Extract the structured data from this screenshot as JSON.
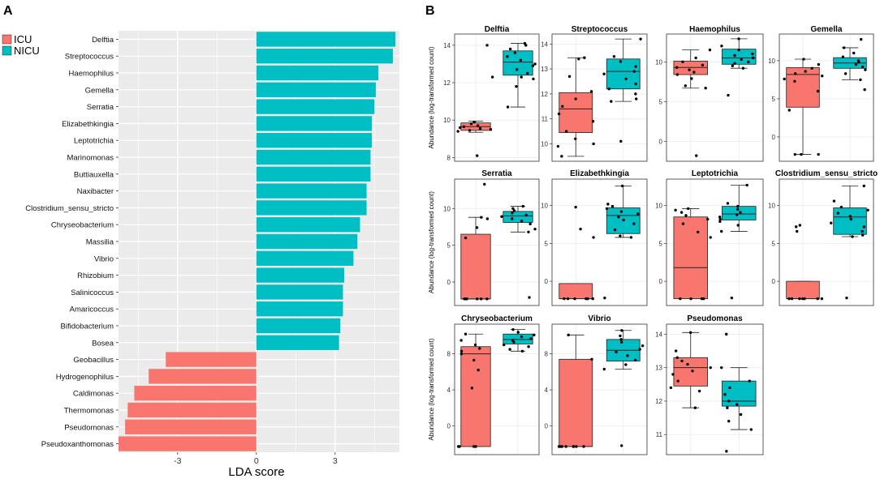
{
  "panel_labels": {
    "a": "A",
    "b": "B"
  },
  "colors": {
    "icu": "#F8766D",
    "nicu": "#00BFC4",
    "panel_bg": "#EBEBEB",
    "grid": "#FFFFFF"
  },
  "chart_data": [
    {
      "type": "bar",
      "orientation": "horizontal",
      "title": "",
      "xlabel": "LDA score",
      "ylabel": "",
      "xlim": [
        -5.25,
        5.45
      ],
      "xticks": [
        -3,
        0,
        3
      ],
      "legend": {
        "position": "top-left",
        "entries": [
          "ICU",
          "NICU"
        ]
      },
      "categories": [
        "Delftia",
        "Streptococcus",
        "Haemophilus",
        "Gemella",
        "Serratia",
        "Elizabethkingia",
        "Leptotrichia",
        "Marinomonas",
        "Buttiauxella",
        "Naxibacter",
        "Clostridium_sensu_stricto",
        "Chryseobacterium",
        "Massilia",
        "Vibrio",
        "Rhizobium",
        "Salinicoccus",
        "Amaricoccus",
        "Bifidobacterium",
        "Bosea",
        "Geobacillus",
        "Hydrogenophilus",
        "Caldimonas",
        "Thermomonas",
        "Pseudomonas",
        "Pseudoxanthomonas"
      ],
      "values": [
        5.3,
        5.2,
        4.65,
        4.55,
        4.5,
        4.4,
        4.4,
        4.35,
        4.35,
        4.2,
        4.2,
        3.95,
        3.85,
        3.7,
        3.35,
        3.3,
        3.3,
        3.2,
        3.15,
        -3.45,
        -4.1,
        -4.65,
        -4.9,
        -5.0,
        -5.25
      ],
      "groups": [
        "NICU",
        "NICU",
        "NICU",
        "NICU",
        "NICU",
        "NICU",
        "NICU",
        "NICU",
        "NICU",
        "NICU",
        "NICU",
        "NICU",
        "NICU",
        "NICU",
        "NICU",
        "NICU",
        "NICU",
        "NICU",
        "NICU",
        "ICU",
        "ICU",
        "ICU",
        "ICU",
        "ICU",
        "ICU"
      ]
    },
    {
      "type": "box",
      "ylabel": "Abundance (log-transformed count)",
      "groups": [
        "ICU",
        "NICU"
      ],
      "panels": [
        {
          "title": "Delftia",
          "ylim": [
            7.8,
            14.6
          ],
          "yticks": [
            8,
            10,
            12,
            14
          ],
          "icu": {
            "q1": 9.45,
            "median": 9.65,
            "q3": 9.85,
            "lo": 9.35,
            "hi": 9.95,
            "points": [
              9.4,
              9.5,
              9.6,
              9.7,
              9.8,
              9.9,
              9.55,
              9.65,
              9.45,
              8.1,
              12.3,
              14.0
            ]
          },
          "nicu": {
            "q1": 12.4,
            "median": 13.1,
            "q3": 13.7,
            "lo": 10.7,
            "hi": 14.1,
            "points": [
              14.0,
              13.8,
              13.6,
              13.4,
              13.2,
              13.0,
              12.9,
              12.7,
              12.5,
              12.3,
              12.2,
              11.8,
              10.7,
              14.1
            ]
          }
        },
        {
          "title": "Streptococcus",
          "ylim": [
            9.3,
            14.4
          ],
          "yticks": [
            10,
            11,
            12,
            13,
            14
          ],
          "icu": {
            "q1": 10.45,
            "median": 11.4,
            "q3": 12.05,
            "lo": 9.5,
            "hi": 13.45,
            "points": [
              9.5,
              9.9,
              10.2,
              10.5,
              10.9,
              11.2,
              11.5,
              11.8,
              12.1,
              12.7,
              13.4,
              13.45,
              10.0
            ]
          },
          "nicu": {
            "q1": 12.2,
            "median": 12.9,
            "q3": 13.4,
            "lo": 11.7,
            "hi": 14.2,
            "points": [
              14.2,
              13.5,
              13.3,
              13.1,
              12.9,
              12.8,
              12.6,
              12.4,
              12.2,
              12.0,
              11.8,
              11.7,
              10.1
            ]
          }
        },
        {
          "title": "Haemophilus",
          "ylim": [
            -2.5,
            13.5
          ],
          "yticks": [
            0,
            5,
            10
          ],
          "icu": {
            "q1": 8.4,
            "median": 9.3,
            "q3": 10.1,
            "lo": 6.7,
            "hi": 11.5,
            "points": [
              11.5,
              10.5,
              10.0,
              9.6,
              9.3,
              9.0,
              8.7,
              8.4,
              7.9,
              7.0,
              6.7,
              -1.8
            ]
          },
          "nicu": {
            "q1": 9.7,
            "median": 10.5,
            "q3": 11.6,
            "lo": 9.2,
            "hi": 12.9,
            "points": [
              12.9,
              12.0,
              11.5,
              11.0,
              10.8,
              10.5,
              10.3,
              10.0,
              9.8,
              9.5,
              9.2,
              5.8
            ]
          }
        },
        {
          "title": "Gemella",
          "ylim": [
            -3.2,
            13.5
          ],
          "yticks": [
            0,
            5,
            10
          ],
          "icu": {
            "q1": 3.9,
            "median": 8.2,
            "q3": 9.1,
            "lo": -2.3,
            "hi": 10.2,
            "points": [
              10.2,
              9.5,
              9.0,
              8.6,
              8.3,
              8.0,
              7.6,
              7.3,
              6.0,
              3.5,
              -2.3,
              -2.3,
              -2.3
            ]
          },
          "nicu": {
            "q1": 9.0,
            "median": 9.7,
            "q3": 10.4,
            "lo": 7.5,
            "hi": 11.7,
            "points": [
              12.8,
              11.7,
              11.0,
              10.5,
              10.0,
              9.8,
              9.5,
              9.2,
              8.8,
              8.3,
              7.5,
              6.2
            ]
          }
        },
        {
          "title": "Serratia",
          "ylim": [
            -3.2,
            14.0
          ],
          "yticks": [
            0,
            5,
            10
          ],
          "icu": {
            "q1": -2.3,
            "median": -2.3,
            "q3": 6.5,
            "lo": -2.3,
            "hi": 8.8,
            "points": [
              8.8,
              8.6,
              7.4,
              6.0,
              -2.3,
              -2.3,
              -2.3,
              -2.3,
              -2.3,
              -2.3,
              -2.3,
              13.3
            ]
          },
          "nicu": {
            "q1": 8.1,
            "median": 9.0,
            "q3": 9.6,
            "lo": 6.8,
            "hi": 10.3,
            "points": [
              10.3,
              10.0,
              9.7,
              9.4,
              9.1,
              8.9,
              8.6,
              8.3,
              7.9,
              7.2,
              6.8,
              -2.1
            ]
          }
        },
        {
          "title": "Elizabethkingia",
          "ylim": [
            -3.2,
            13.5
          ],
          "yticks": [
            0,
            5,
            10
          ],
          "icu": {
            "q1": -2.3,
            "median": -2.3,
            "q3": -0.3,
            "lo": -2.3,
            "hi": -0.3,
            "points": [
              -2.3,
              -2.3,
              -2.3,
              -2.3,
              -2.3,
              -2.3,
              -2.3,
              9.8,
              6.9,
              5.8
            ]
          },
          "nicu": {
            "q1": 6.3,
            "median": 8.7,
            "q3": 9.7,
            "lo": 5.8,
            "hi": 12.6,
            "points": [
              12.6,
              10.2,
              9.9,
              9.6,
              9.2,
              8.9,
              8.5,
              8.1,
              7.6,
              6.8,
              6.0,
              5.8,
              -2.2
            ]
          }
        },
        {
          "title": "Leptotrichia",
          "ylim": [
            -3.2,
            13.5
          ],
          "yticks": [
            0,
            5,
            10
          ],
          "icu": {
            "q1": -2.3,
            "median": 1.8,
            "q3": 8.5,
            "lo": -2.3,
            "hi": 9.6,
            "points": [
              9.6,
              9.4,
              9.1,
              8.7,
              8.2,
              7.6,
              6.5,
              5.8,
              -2.3,
              -2.3,
              -2.3,
              -2.3
            ]
          },
          "nicu": {
            "q1": 8.1,
            "median": 8.9,
            "q3": 9.9,
            "lo": 6.6,
            "hi": 12.7,
            "points": [
              12.7,
              10.3,
              9.9,
              9.5,
              9.1,
              8.8,
              8.5,
              8.2,
              7.9,
              7.4,
              6.6,
              -2.2
            ]
          }
        },
        {
          "title": "Clostridium_sensu_stricto",
          "ylim": [
            -3.2,
            13.5
          ],
          "yticks": [
            0,
            5,
            10
          ],
          "icu": {
            "q1": -2.3,
            "median": -2.3,
            "q3": 0.0,
            "lo": -2.3,
            "hi": 0.0,
            "points": [
              -2.3,
              -2.3,
              -2.3,
              -2.3,
              -2.3,
              -2.3,
              -2.3,
              7.4,
              7.2,
              6.6
            ]
          },
          "nicu": {
            "q1": 6.2,
            "median": 8.5,
            "q3": 9.7,
            "lo": 5.9,
            "hi": 12.6,
            "points": [
              12.6,
              10.6,
              9.8,
              9.4,
              9.0,
              8.6,
              8.2,
              7.7,
              7.2,
              6.6,
              6.1,
              5.9,
              -2.2
            ]
          }
        },
        {
          "title": "Chryseobacterium",
          "ylim": [
            -3.2,
            11.3
          ],
          "yticks": [
            0,
            4,
            8
          ],
          "icu": {
            "q1": -2.3,
            "median": 8.0,
            "q3": 8.8,
            "lo": -2.3,
            "hi": 10.2,
            "points": [
              10.2,
              9.5,
              9.0,
              8.6,
              8.3,
              8.0,
              7.3,
              6.2,
              4.2,
              -2.3,
              -2.3,
              -2.3,
              -2.3
            ]
          },
          "nicu": {
            "q1": 9.1,
            "median": 9.6,
            "q3": 10.2,
            "lo": 8.3,
            "hi": 10.7,
            "points": [
              10.7,
              10.4,
              10.1,
              9.9,
              9.7,
              9.5,
              9.3,
              9.0,
              8.8,
              8.5,
              8.3
            ]
          }
        },
        {
          "title": "Vibrio",
          "ylim": [
            -3.2,
            11.3
          ],
          "yticks": [
            0,
            4,
            8
          ],
          "icu": {
            "q1": -2.3,
            "median": -2.3,
            "q3": 7.4,
            "lo": -2.3,
            "hi": 10.1,
            "points": [
              10.1,
              7.4,
              -2.3,
              -2.3,
              -2.3,
              -2.3,
              -2.3,
              -2.3,
              -2.3,
              -2.3
            ]
          },
          "nicu": {
            "q1": 7.2,
            "median": 8.4,
            "q3": 9.6,
            "lo": 6.3,
            "hi": 10.6,
            "points": [
              10.6,
              10.0,
              9.6,
              9.3,
              8.9,
              8.5,
              8.2,
              7.8,
              7.3,
              6.8,
              6.3,
              -2.2
            ]
          }
        },
        {
          "title": "Pseudomonas",
          "ylim": [
            10.4,
            14.3
          ],
          "yticks": [
            11,
            12,
            13,
            14
          ],
          "icu": {
            "q1": 12.45,
            "median": 13.0,
            "q3": 13.3,
            "lo": 11.8,
            "hi": 14.05,
            "points": [
              14.05,
              13.5,
              13.3,
              13.2,
              13.1,
              13.0,
              12.9,
              12.8,
              12.6,
              12.4,
              12.3,
              11.8
            ]
          },
          "nicu": {
            "q1": 11.85,
            "median": 12.0,
            "q3": 12.6,
            "lo": 11.15,
            "hi": 13.0,
            "points": [
              14.0,
              13.0,
              12.6,
              12.4,
              12.2,
              12.0,
              11.9,
              11.8,
              11.6,
              11.4,
              11.15,
              10.5
            ]
          }
        }
      ]
    }
  ]
}
